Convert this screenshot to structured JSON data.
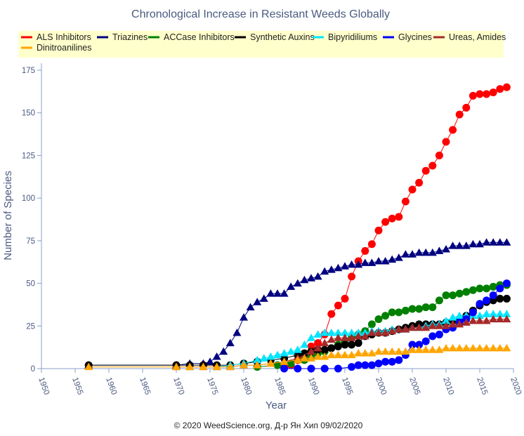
{
  "chart_data": {
    "type": "line",
    "title": "Chronological Increase in Resistant Weeds Globally",
    "xlabel": "Year",
    "ylabel": "Number of Species",
    "footer": "© 2020 WeedScience.org, Д-р Ян Хип 09/02/2020",
    "xlim": [
      1950,
      2020
    ],
    "ylim": [
      0,
      175
    ],
    "xticks": [
      1950,
      1955,
      1960,
      1965,
      1970,
      1975,
      1980,
      1985,
      1990,
      1995,
      2000,
      2005,
      2010,
      2015,
      2020
    ],
    "yticks": [
      0,
      25,
      50,
      75,
      100,
      125,
      150,
      175
    ],
    "grid": false,
    "legend_position": "top",
    "series": [
      {
        "name": "ALS Inhibitors",
        "color": "#ff0000",
        "marker": "circle",
        "x": [
          1986,
          1987,
          1988,
          1989,
          1990,
          1991,
          1992,
          1993,
          1994,
          1995,
          1996,
          1997,
          1998,
          1999,
          2000,
          2001,
          2002,
          2003,
          2004,
          2005,
          2006,
          2007,
          2008,
          2009,
          2010,
          2011,
          2012,
          2013,
          2014,
          2015,
          2016,
          2017,
          2018,
          2019
        ],
        "y": [
          1,
          2,
          5,
          8,
          13,
          15,
          20,
          32,
          37,
          41,
          54,
          63,
          69,
          73,
          81,
          86,
          88,
          89,
          98,
          105,
          109,
          116,
          119,
          125,
          133,
          140,
          149,
          153,
          160,
          161,
          161,
          162,
          164,
          165
        ]
      },
      {
        "name": "Triazines",
        "color": "#000080",
        "marker": "triangle",
        "x": [
          1957,
          1970,
          1972,
          1974,
          1975,
          1976,
          1977,
          1978,
          1979,
          1980,
          1981,
          1982,
          1983,
          1984,
          1985,
          1986,
          1987,
          1988,
          1989,
          1990,
          1991,
          1992,
          1993,
          1994,
          1995,
          1996,
          1997,
          1998,
          1999,
          2000,
          2001,
          2002,
          2003,
          2004,
          2005,
          2006,
          2007,
          2008,
          2009,
          2010,
          2011,
          2012,
          2013,
          2014,
          2015,
          2016,
          2017,
          2018,
          2019
        ],
        "y": [
          2,
          2,
          3,
          3,
          4,
          7,
          10,
          15,
          21,
          30,
          36,
          39,
          41,
          44,
          44,
          44,
          48,
          50,
          52,
          53,
          54,
          57,
          58,
          59,
          60,
          61,
          61,
          62,
          62,
          63,
          63,
          64,
          65,
          67,
          67,
          68,
          68,
          68,
          69,
          70,
          72,
          72,
          72,
          73,
          73,
          74,
          74,
          74,
          74
        ]
      },
      {
        "name": "ACCase Inhibitors",
        "color": "#008000",
        "marker": "circle",
        "x": [
          1982,
          1985,
          1987,
          1989,
          1990,
          1991,
          1992,
          1993,
          1994,
          1995,
          1996,
          1997,
          1998,
          1999,
          2000,
          2001,
          2002,
          2003,
          2004,
          2005,
          2006,
          2007,
          2008,
          2009,
          2010,
          2011,
          2012,
          2013,
          2014,
          2015,
          2016,
          2017,
          2018,
          2019
        ],
        "y": [
          1,
          2,
          3,
          5,
          7,
          9,
          10,
          12,
          14,
          16,
          18,
          20,
          22,
          26,
          29,
          31,
          33,
          33,
          34,
          35,
          35,
          36,
          36,
          40,
          43,
          43,
          44,
          45,
          46,
          47,
          47,
          48,
          49,
          49
        ]
      },
      {
        "name": "Synthetic Auxins",
        "color": "#000000",
        "marker": "circle",
        "x": [
          1957,
          1970,
          1972,
          1974,
          1976,
          1978,
          1980,
          1982,
          1984,
          1986,
          1988,
          1989,
          1990,
          1991,
          1992,
          1993,
          1994,
          1995,
          1996,
          1997,
          1998,
          1999,
          2000,
          2001,
          2002,
          2003,
          2004,
          2005,
          2006,
          2007,
          2008,
          2009,
          2010,
          2011,
          2012,
          2013,
          2014,
          2015,
          2016,
          2017,
          2018,
          2019
        ],
        "y": [
          2,
          2,
          2,
          2,
          2,
          2,
          3,
          4,
          5,
          6,
          8,
          9,
          10,
          11,
          11,
          12,
          13,
          14,
          14,
          15,
          19,
          20,
          21,
          21,
          22,
          23,
          24,
          25,
          26,
          26,
          26,
          26,
          27,
          28,
          29,
          31,
          34,
          37,
          39,
          40,
          41,
          41
        ]
      },
      {
        "name": "Bipyridiliums",
        "color": "#00e5ff",
        "marker": "triangle",
        "x": [
          1976,
          1978,
          1980,
          1982,
          1983,
          1984,
          1985,
          1986,
          1987,
          1988,
          1989,
          1990,
          1991,
          1992,
          1993,
          1994,
          1995,
          1996,
          1997,
          1998,
          1999,
          2000,
          2001,
          2002,
          2003,
          2004,
          2005,
          2006,
          2007,
          2008,
          2009,
          2010,
          2011,
          2012,
          2013,
          2014,
          2015,
          2016,
          2017,
          2018,
          2019
        ],
        "y": [
          1,
          2,
          3,
          5,
          6,
          7,
          8,
          9,
          10,
          11,
          14,
          18,
          20,
          21,
          21,
          21,
          21,
          21,
          21,
          21,
          22,
          22,
          22,
          23,
          23,
          23,
          24,
          24,
          25,
          26,
          26,
          28,
          30,
          31,
          31,
          31,
          31,
          32,
          32,
          32,
          32
        ]
      },
      {
        "name": "Glycines",
        "color": "#0000ff",
        "marker": "circle",
        "x": [
          1986,
          1988,
          1990,
          1992,
          1994,
          1996,
          1997,
          1998,
          1999,
          2000,
          2001,
          2002,
          2003,
          2004,
          2005,
          2006,
          2007,
          2008,
          2009,
          2010,
          2011,
          2012,
          2013,
          2014,
          2015,
          2016,
          2017,
          2018,
          2019
        ],
        "y": [
          0,
          0,
          0,
          0,
          0,
          1,
          2,
          2,
          2,
          3,
          4,
          4,
          5,
          8,
          14,
          14,
          16,
          19,
          20,
          23,
          24,
          27,
          29,
          33,
          38,
          40,
          43,
          47,
          50
        ]
      },
      {
        "name": "Ureas, Amides",
        "color": "#a52a2a",
        "marker": "triangle",
        "x": [
          1970,
          1972,
          1974,
          1976,
          1978,
          1980,
          1982,
          1984,
          1986,
          1988,
          1990,
          1991,
          1992,
          1993,
          1994,
          1995,
          1996,
          1997,
          1998,
          1999,
          2000,
          2001,
          2002,
          2003,
          2004,
          2005,
          2006,
          2007,
          2008,
          2009,
          2010,
          2011,
          2012,
          2013,
          2014,
          2015,
          2016,
          2017,
          2018,
          2019
        ],
        "y": [
          1,
          1,
          1,
          1,
          1,
          2,
          2,
          3,
          4,
          6,
          10,
          12,
          15,
          17,
          18,
          18,
          18,
          19,
          19,
          21,
          21,
          21,
          22,
          23,
          23,
          24,
          24,
          24,
          25,
          25,
          25,
          26,
          26,
          27,
          28,
          28,
          28,
          29,
          29,
          29
        ]
      },
      {
        "name": "Dinitroanilines",
        "color": "#ffa500",
        "marker": "triangle",
        "x": [
          1957,
          1970,
          1972,
          1974,
          1976,
          1978,
          1980,
          1982,
          1984,
          1986,
          1988,
          1989,
          1990,
          1991,
          1992,
          1993,
          1994,
          1995,
          1996,
          1997,
          1998,
          1999,
          2000,
          2001,
          2002,
          2003,
          2004,
          2005,
          2006,
          2007,
          2008,
          2009,
          2010,
          2011,
          2012,
          2013,
          2014,
          2015,
          2016,
          2017,
          2018,
          2019
        ],
        "y": [
          1,
          1,
          1,
          1,
          1,
          1,
          2,
          2,
          3,
          4,
          5,
          6,
          6,
          7,
          7,
          8,
          8,
          8,
          8,
          9,
          9,
          9,
          10,
          10,
          10,
          10,
          10,
          11,
          11,
          11,
          11,
          11,
          12,
          12,
          12,
          12,
          12,
          12,
          12,
          12,
          12,
          12
        ]
      }
    ]
  }
}
